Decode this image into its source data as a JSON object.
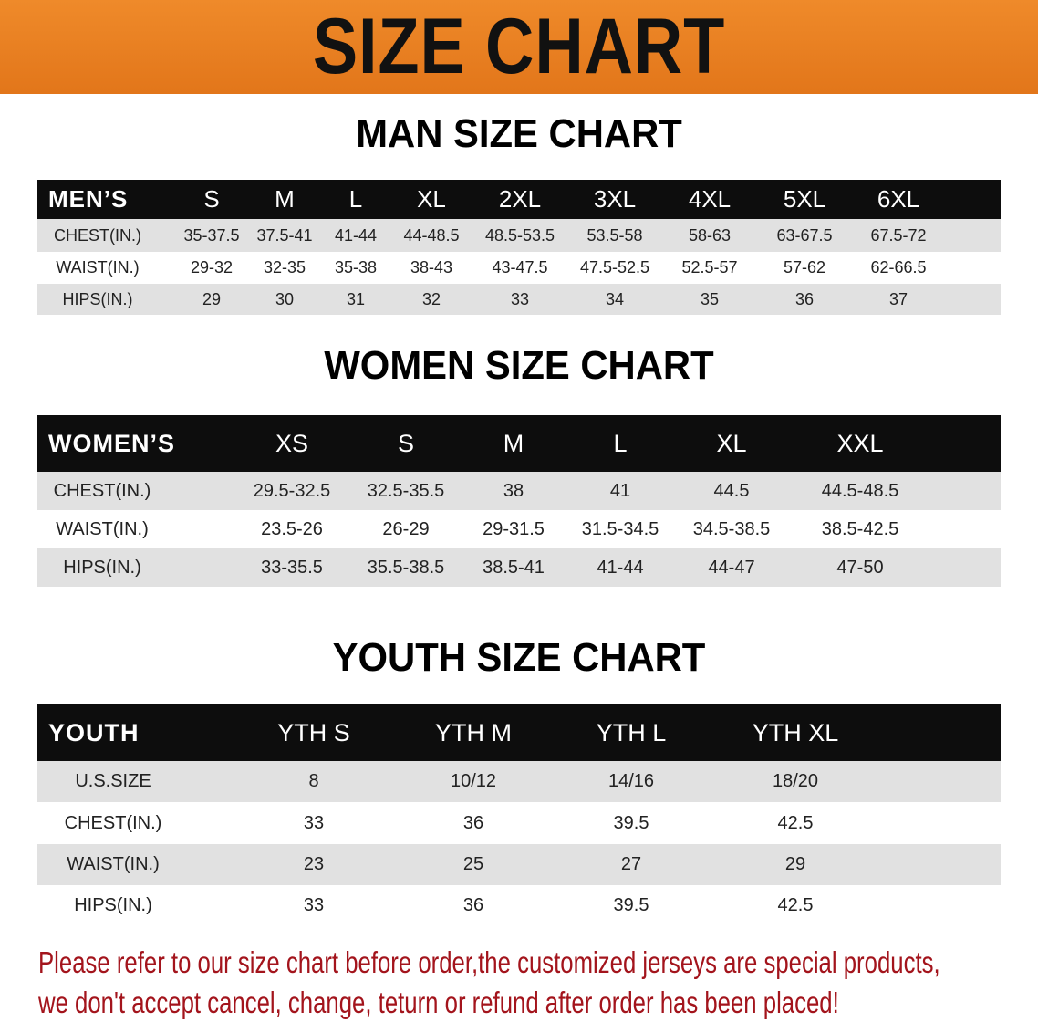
{
  "banner_title": "SIZE CHART",
  "men": {
    "title": "MAN SIZE CHART",
    "header": [
      "MEN’S",
      "S",
      "M",
      "L",
      "XL",
      "2XL",
      "3XL",
      "4XL",
      "5XL",
      "6XL"
    ],
    "rows": [
      [
        "CHEST(IN.)",
        "35-37.5",
        "37.5-41",
        "41-44",
        "44-48.5",
        "48.5-53.5",
        "53.5-58",
        "58-63",
        "63-67.5",
        "67.5-72"
      ],
      [
        "WAIST(IN.)",
        "29-32",
        "32-35",
        "35-38",
        "38-43",
        "43-47.5",
        "47.5-52.5",
        "52.5-57",
        "57-62",
        "62-66.5"
      ],
      [
        "HIPS(IN.)",
        "29",
        "30",
        "31",
        "32",
        "33",
        "34",
        "35",
        "36",
        "37"
      ]
    ]
  },
  "women": {
    "title": "WOMEN SIZE CHART",
    "header": [
      "WOMEN’S",
      "XS",
      "S",
      "M",
      "L",
      "XL",
      "XXL"
    ],
    "rows": [
      [
        "CHEST(IN.)",
        "29.5-32.5",
        "32.5-35.5",
        "38",
        "41",
        "44.5",
        "44.5-48.5"
      ],
      [
        "WAIST(IN.)",
        "23.5-26",
        "26-29",
        "29-31.5",
        "31.5-34.5",
        "34.5-38.5",
        "38.5-42.5"
      ],
      [
        "HIPS(IN.)",
        "33-35.5",
        "35.5-38.5",
        "38.5-41",
        "41-44",
        "44-47",
        "47-50"
      ]
    ]
  },
  "youth": {
    "title": "YOUTH SIZE CHART",
    "header": [
      "YOUTH",
      "YTH S",
      "YTH M",
      "YTH L",
      "YTH XL"
    ],
    "rows": [
      [
        "U.S.SIZE",
        "8",
        "10/12",
        "14/16",
        "18/20"
      ],
      [
        "CHEST(IN.)",
        "33",
        "36",
        "39.5",
        "42.5"
      ],
      [
        "WAIST(IN.)",
        "23",
        "25",
        "27",
        "29"
      ],
      [
        "HIPS(IN.)",
        "33",
        "36",
        "39.5",
        "42.5"
      ]
    ]
  },
  "notice": [
    "Please refer to our size chart before order,the customized jerseys are special products,",
    "we don't accept cancel, change, teturn or refund after order has been placed!"
  ],
  "colors": {
    "banner": "#e87d1e",
    "header_row": "#0d0d0d",
    "stripe": "#e1e1e1",
    "notice": "#a3141c"
  }
}
